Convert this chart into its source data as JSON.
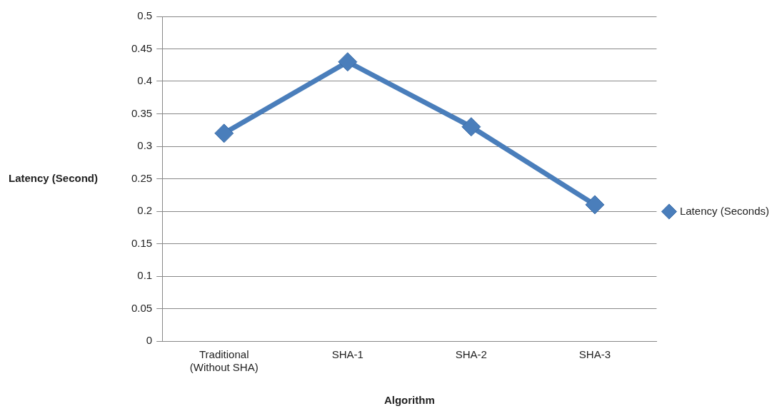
{
  "chart_data": {
    "type": "line",
    "xlabel": "Algorithm",
    "ylabel": "Latency (Second)",
    "categories": [
      "Traditional (Without SHA)",
      "SHA-1",
      "SHA-2",
      "SHA-3"
    ],
    "series": [
      {
        "name": "Latency (Seconds)",
        "color": "#4a7ebb",
        "values": [
          0.32,
          0.43,
          0.33,
          0.21
        ]
      }
    ],
    "ylim": [
      0,
      0.5
    ],
    "yticks": [
      0,
      0.05,
      0.1,
      0.15,
      0.2,
      0.25,
      0.3,
      0.35,
      0.4,
      0.45,
      0.5
    ],
    "grid": "y",
    "legend": "right",
    "marker": "diamond",
    "line_style": "solid"
  }
}
